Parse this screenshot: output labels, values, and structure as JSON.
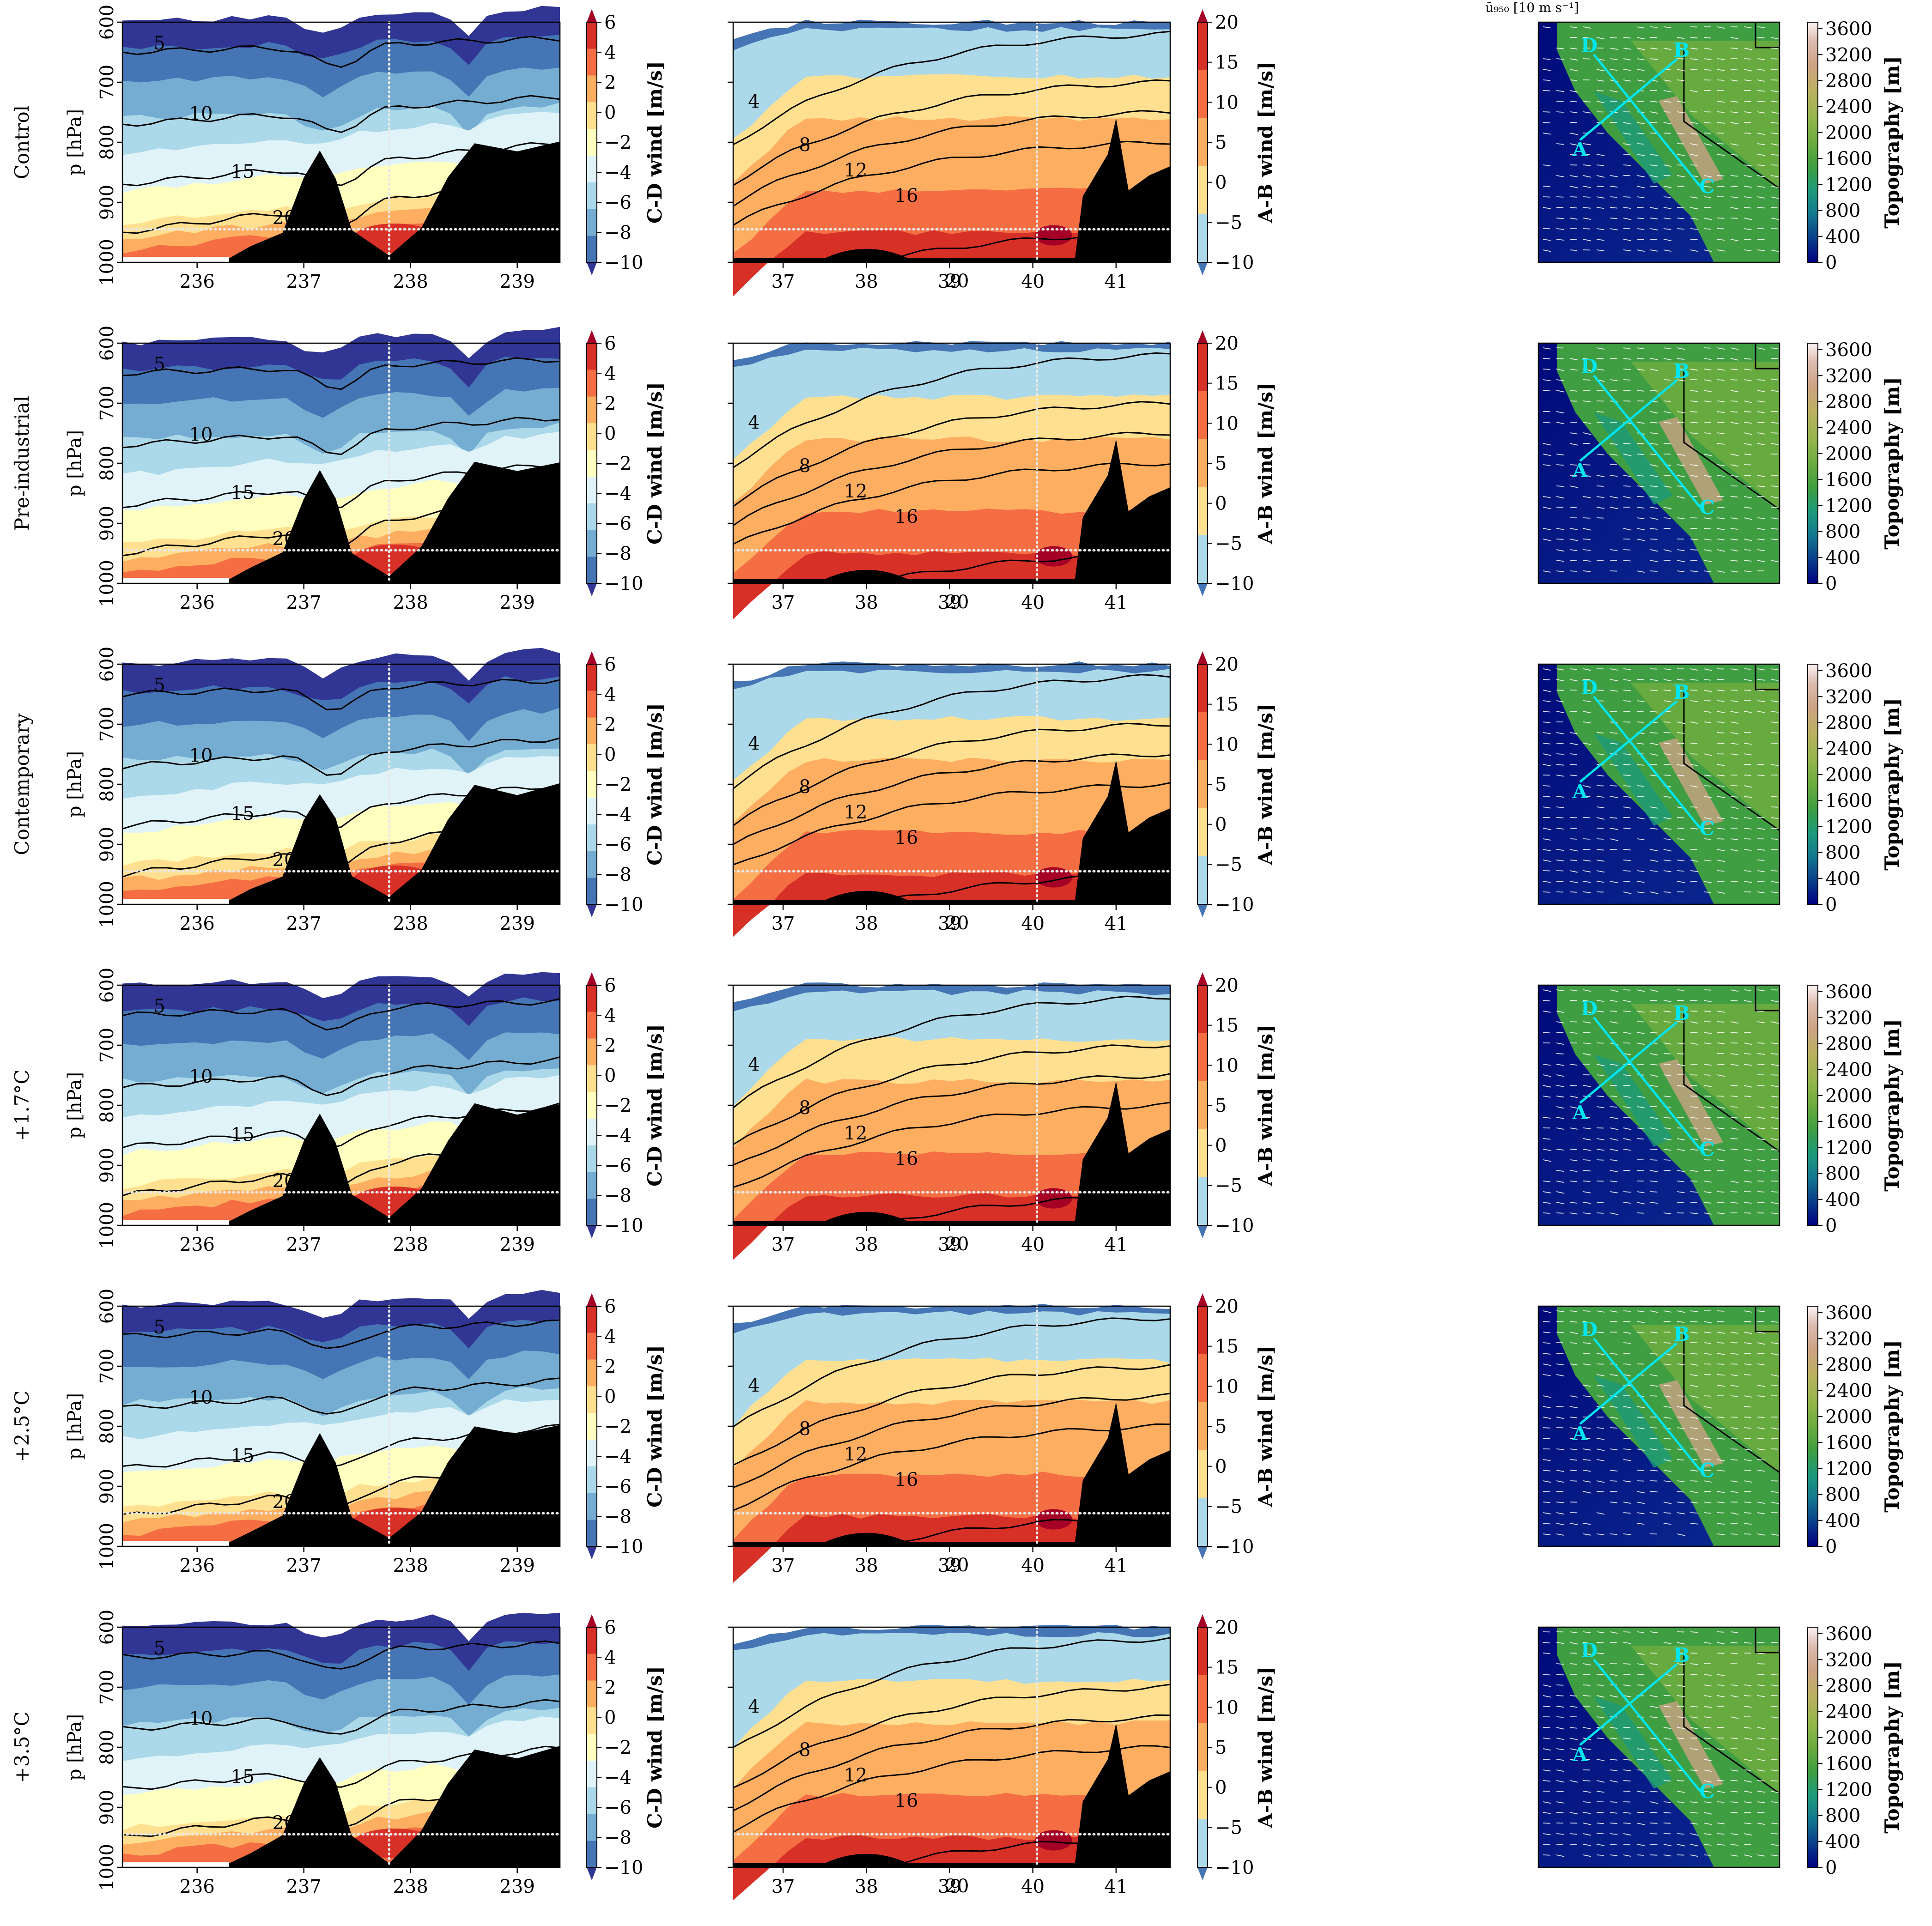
{
  "figure": {
    "quiver_key_label": "ū₉₅₀ [10 m s⁻¹]",
    "panel_label_a_text": "A",
    "panel_label_b_text": "B",
    "panel_label_c_text": "C",
    "panel_label_d_text": "D"
  },
  "colors": {
    "terrain": "#000000",
    "transect_line": "#00e5ee",
    "dotted_ref": "#e8e8e8",
    "contour": "#000000"
  },
  "chart_data": [
    {
      "type": "contour",
      "panel": "C-D cross-section",
      "rows": [
        "Control",
        "Pre-industrial",
        "Contemporary",
        "+1.7$^\\circ$C",
        "+2.5$^\\circ$C",
        "+3.5$^\\circ$C"
      ],
      "row_labels_display": [
        "Control",
        "Pre-industrial",
        "Contemporary",
        "+1.7°C",
        "+2.5°C",
        "+3.5°C"
      ],
      "ylabel": "p [hPa]",
      "yticks": [
        600,
        700,
        800,
        900,
        1000
      ],
      "ylim": [
        1000,
        600
      ],
      "xticks": [
        236,
        237,
        238,
        239
      ],
      "xlim": [
        235.3,
        239.4
      ],
      "colorbar_label": "C-D wind [m/s]",
      "colorbar_ticks": [
        6,
        4,
        2,
        0,
        -2,
        -4,
        -6,
        -8,
        -10
      ],
      "colorbar_levels": [
        -10,
        -8,
        -6,
        -4,
        -2,
        0,
        2,
        4,
        6
      ],
      "colorbar_colors": [
        "#313695",
        "#4575b4",
        "#74add1",
        "#abd9e9",
        "#e0f3f8",
        "#ffffbf",
        "#fee090",
        "#fdae61",
        "#f46d43",
        "#d73027",
        "#a50026"
      ],
      "contour_levels": [
        0,
        5,
        10,
        15,
        20
      ],
      "reference_vline_x": 237.8,
      "reference_hline_p": 945
    },
    {
      "type": "contour",
      "panel": "A-B cross-section",
      "xticks": [
        37,
        38,
        39,
        40,
        41
      ],
      "xlim": [
        36.4,
        41.65
      ],
      "ylim": [
        1000,
        600
      ],
      "colorbar_label": "A-B wind [m/s]",
      "colorbar_ticks": [
        20,
        15,
        10,
        5,
        0,
        -5,
        -10
      ],
      "colorbar_levels": [
        -10,
        -5,
        0,
        5,
        10,
        15,
        20
      ],
      "colorbar_colors": [
        "#4575b4",
        "#abd9e9",
        "#fee090",
        "#fdae61",
        "#f46d43",
        "#d73027",
        "#a50026"
      ],
      "contour_levels": [
        4,
        8,
        12,
        16,
        20
      ],
      "reference_vline_x": 40.05,
      "reference_hline_p": 945
    },
    {
      "type": "heatmap",
      "panel": "map",
      "colorbar_label": "Topography [m]",
      "colorbar_ticks": [
        3600,
        3200,
        2800,
        2400,
        2000,
        1600,
        1200,
        800,
        400,
        0
      ],
      "colorbar_colors": [
        "#000080",
        "#0a3e8a",
        "#137890",
        "#1e9a7a",
        "#3f9e41",
        "#6cab3f",
        "#94b64a",
        "#bdb063",
        "#cca384",
        "#ddbcb0",
        "#fbf2f2"
      ],
      "transect_labels": [
        "A",
        "B",
        "C",
        "D"
      ]
    }
  ]
}
